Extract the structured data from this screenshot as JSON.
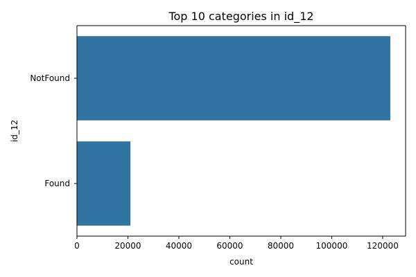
{
  "chart_data": {
    "type": "bar",
    "orientation": "horizontal",
    "title": "Top 10 categories in id_12",
    "xlabel": "count",
    "ylabel": "id_12",
    "categories": [
      "NotFound",
      "Found"
    ],
    "values": [
      123000,
      21000
    ],
    "xlim": [
      0,
      129000
    ],
    "xticks": [
      0,
      20000,
      40000,
      60000,
      80000,
      100000,
      120000
    ],
    "grid": false,
    "bar_color": "#3274a1"
  }
}
